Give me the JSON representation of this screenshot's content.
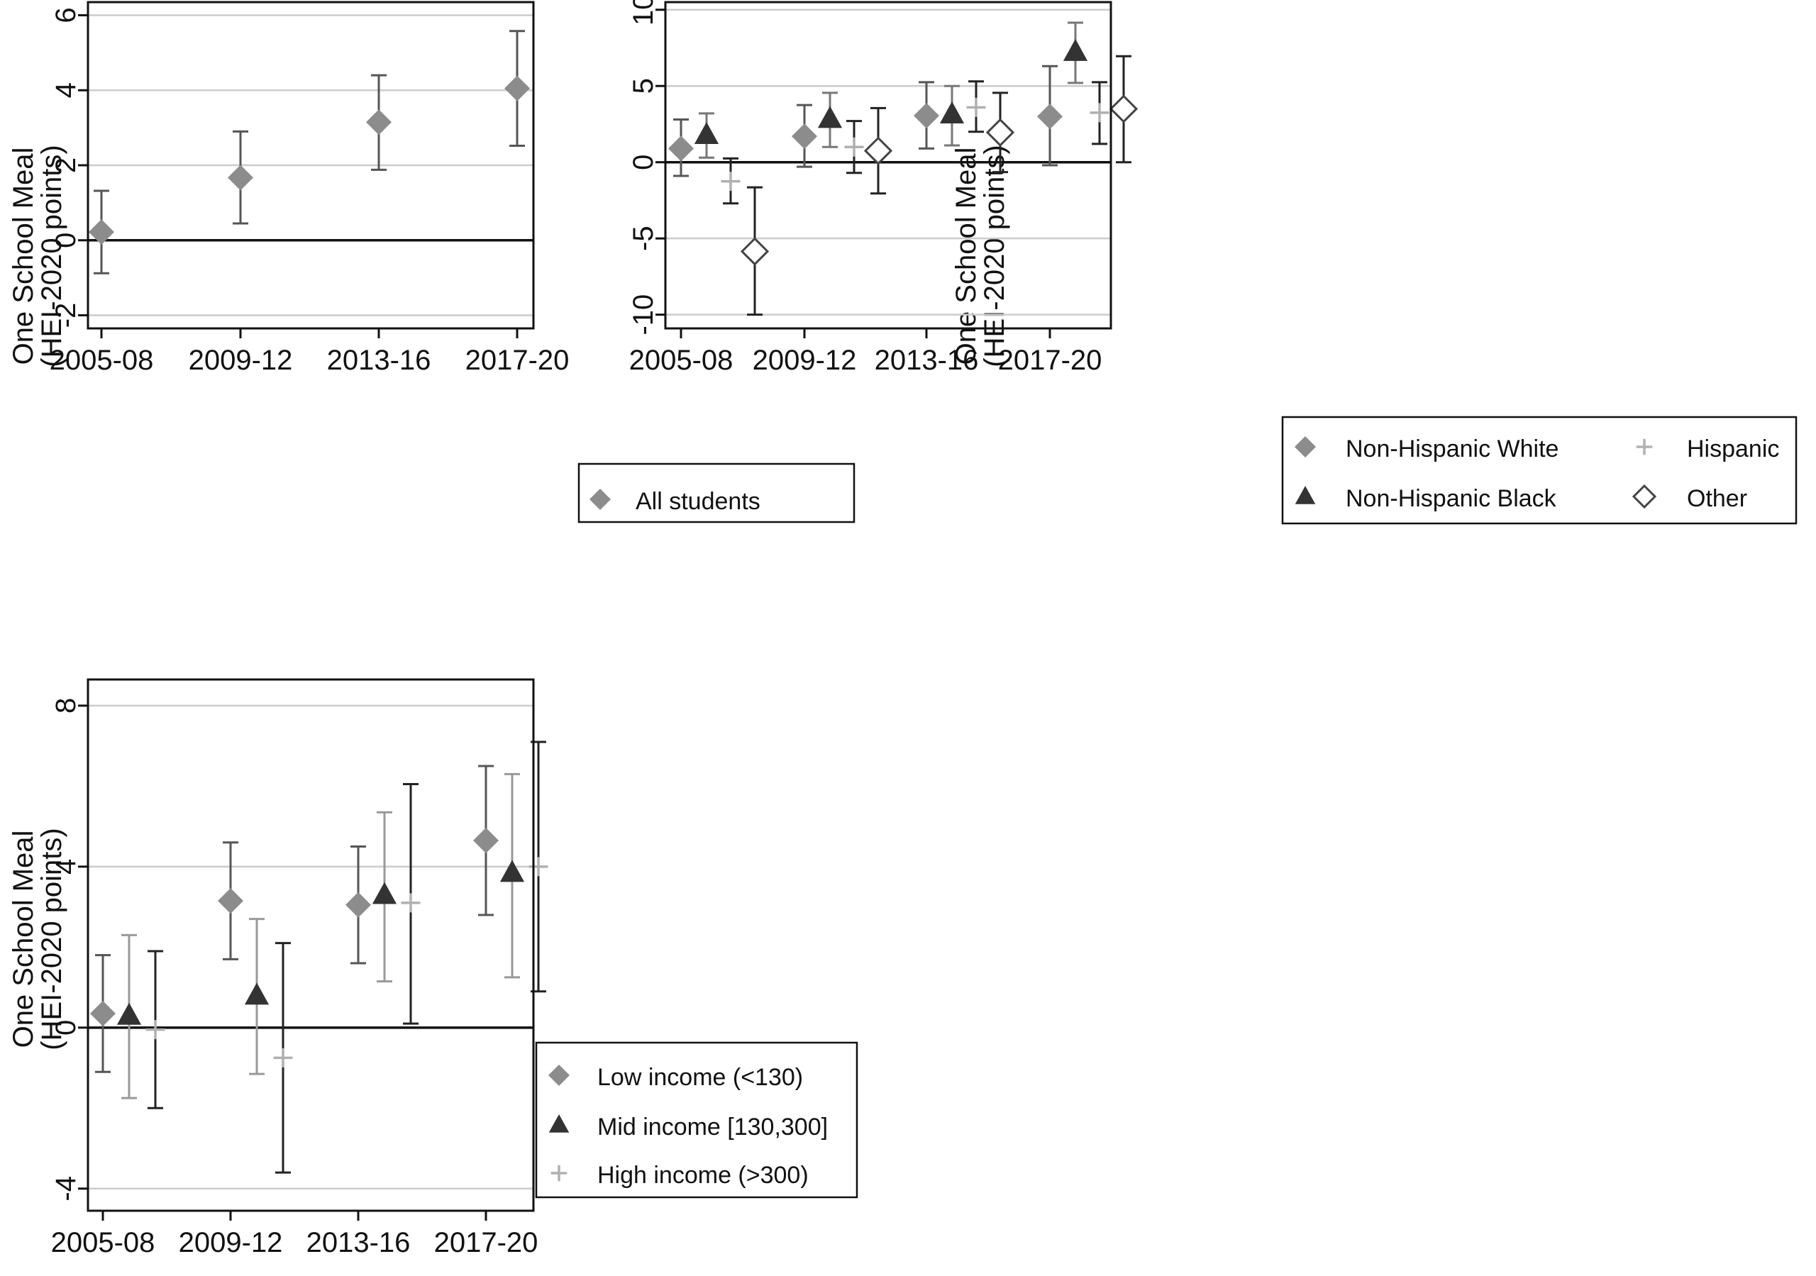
{
  "chart_data": [
    {
      "id": "panel1",
      "type": "scatter",
      "title": "",
      "ylabel": [
        "One School Meal",
        "(HEI-2020 points)"
      ],
      "xlabel": "",
      "categories": [
        "2005-08",
        "2009-12",
        "2013-16",
        "2017-20"
      ],
      "ylim": [
        -2.35,
        6.35
      ],
      "yticks": [
        -2,
        0,
        2,
        4,
        6
      ],
      "grid": true,
      "legend_position": "bottom-right",
      "series": [
        {
          "name": "All students",
          "marker": "diamond-filled",
          "color": "#8c8c8c",
          "errcolor": "#555555",
          "values": [
            0.22,
            1.67,
            3.15,
            4.05
          ],
          "lower": [
            -0.88,
            0.45,
            1.88,
            2.52
          ],
          "upper": [
            1.32,
            2.9,
            4.4,
            5.58
          ]
        }
      ]
    },
    {
      "id": "panel2",
      "type": "scatter",
      "title": "",
      "ylabel": [
        "One School Meal",
        "(HEI-2020 points)"
      ],
      "xlabel": "",
      "categories": [
        "2005-08",
        "2009-12",
        "2013-16",
        "2017-20"
      ],
      "ylim": [
        -10.9,
        10.5
      ],
      "yticks": [
        -10,
        -5,
        0,
        5,
        10
      ],
      "grid": true,
      "legend_position": "bottom-right",
      "series": [
        {
          "name": "Non-Hispanic White",
          "marker": "diamond-filled",
          "color": "#8c8c8c",
          "errcolor": "#555555",
          "values": [
            0.9,
            1.7,
            3.05,
            3.0
          ],
          "lower": [
            -0.9,
            -0.3,
            0.9,
            -0.2
          ],
          "upper": [
            2.8,
            3.75,
            5.25,
            6.3
          ]
        },
        {
          "name": "Non-Hispanic Black",
          "marker": "triangle-filled",
          "color": "#333333",
          "errcolor": "#777777",
          "values": [
            1.8,
            2.85,
            3.15,
            7.25
          ],
          "lower": [
            0.3,
            1.0,
            1.1,
            5.2
          ],
          "upper": [
            3.2,
            4.55,
            5.0,
            9.15
          ]
        },
        {
          "name": "Hispanic",
          "marker": "plus",
          "color": "#b0b0b0",
          "errcolor": "#222222",
          "values": [
            -1.25,
            1.0,
            3.6,
            3.25
          ],
          "lower": [
            -2.7,
            -0.7,
            2.0,
            1.2
          ],
          "upper": [
            0.25,
            2.7,
            5.3,
            5.25
          ]
        },
        {
          "name": "Other",
          "marker": "diamond-hollow",
          "color": "#444444",
          "errcolor": "#222222",
          "values": [
            -5.85,
            0.75,
            1.95,
            3.5
          ],
          "lower": [
            -10.0,
            -2.05,
            -0.65,
            0.0
          ],
          "upper": [
            -1.65,
            3.55,
            4.55,
            6.95
          ]
        }
      ]
    },
    {
      "id": "panel3",
      "type": "scatter",
      "title": "",
      "ylabel": [
        "One School Meal",
        "(HEI-2020 points)"
      ],
      "xlabel": "",
      "categories": [
        "2005-08",
        "2009-12",
        "2013-16",
        "2017-20"
      ],
      "ylim": [
        -4.55,
        8.65
      ],
      "yticks": [
        -4,
        0,
        4,
        8
      ],
      "grid": true,
      "legend_position": "bottom-right",
      "series": [
        {
          "name": "Low income (<130)",
          "marker": "diamond-filled",
          "color": "#8c8c8c",
          "errcolor": "#555555",
          "values": [
            0.35,
            3.15,
            3.05,
            4.65
          ],
          "lower": [
            -1.1,
            1.7,
            1.6,
            2.8
          ],
          "upper": [
            1.8,
            4.6,
            4.5,
            6.5
          ]
        },
        {
          "name": "Mid income [130,300]",
          "marker": "triangle-filled",
          "color": "#333333",
          "errcolor": "#999999",
          "values": [
            0.3,
            0.8,
            3.3,
            3.85
          ],
          "lower": [
            -1.75,
            -1.15,
            1.15,
            1.25
          ],
          "upper": [
            2.3,
            2.7,
            5.35,
            6.3
          ]
        },
        {
          "name": "High income (>300)",
          "marker": "plus",
          "color": "#b0b0b0",
          "errcolor": "#222222",
          "values": [
            -0.05,
            -0.75,
            3.1,
            4.0
          ],
          "lower": [
            -2.0,
            -3.6,
            0.1,
            0.9
          ],
          "upper": [
            1.9,
            2.1,
            6.05,
            7.1
          ]
        }
      ]
    }
  ]
}
